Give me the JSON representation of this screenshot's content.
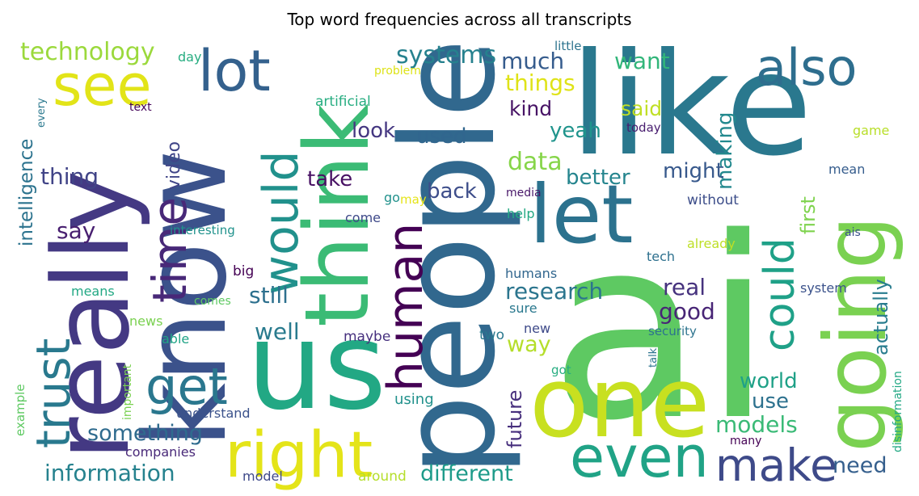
{
  "chart_data": {
    "type": "wordcloud",
    "title": "Top word frequencies across all transcripts",
    "words": [
      {
        "text": "ai",
        "weight": 100,
        "color": "#5ec962",
        "rotate": 0
      },
      {
        "text": "like",
        "weight": 78,
        "color": "#2a788e",
        "rotate": 0
      },
      {
        "text": "people",
        "weight": 74,
        "color": "#31688e",
        "rotate": 90
      },
      {
        "text": "us",
        "weight": 70,
        "color": "#22a884",
        "rotate": 0
      },
      {
        "text": "know",
        "weight": 66,
        "color": "#3b528b",
        "rotate": 90
      },
      {
        "text": "really",
        "weight": 62,
        "color": "#443983",
        "rotate": 90
      },
      {
        "text": "one",
        "weight": 58,
        "color": "#c8e020",
        "rotate": 0
      },
      {
        "text": "think",
        "weight": 54,
        "color": "#3bbb75",
        "rotate": 90
      },
      {
        "text": "going",
        "weight": 52,
        "color": "#7ad151",
        "rotate": 90
      },
      {
        "text": "let",
        "weight": 46,
        "color": "#2c728e",
        "rotate": 0
      },
      {
        "text": "right",
        "weight": 42,
        "color": "#e4e419",
        "rotate": 0
      },
      {
        "text": "see",
        "weight": 40,
        "color": "#e2e418",
        "rotate": 0
      },
      {
        "text": "even",
        "weight": 38,
        "color": "#20a386",
        "rotate": 0
      },
      {
        "text": "lot",
        "weight": 36,
        "color": "#34618d",
        "rotate": 0
      },
      {
        "text": "also",
        "weight": 34,
        "color": "#2e6e8e",
        "rotate": 0
      },
      {
        "text": "human",
        "weight": 33,
        "color": "#440154",
        "rotate": 90
      },
      {
        "text": "would",
        "weight": 32,
        "color": "#21918c",
        "rotate": 90
      },
      {
        "text": "time",
        "weight": 31,
        "color": "#482878",
        "rotate": 90
      },
      {
        "text": "get",
        "weight": 30,
        "color": "#2a778e",
        "rotate": 0
      },
      {
        "text": "trust",
        "weight": 29,
        "color": "#29798e",
        "rotate": 90
      },
      {
        "text": "make",
        "weight": 28,
        "color": "#3e4a89",
        "rotate": 0
      },
      {
        "text": "could",
        "weight": 27,
        "color": "#1fa188",
        "rotate": 90
      },
      {
        "text": "systems",
        "weight": 22,
        "color": "#26818e",
        "rotate": 0
      },
      {
        "text": "technology",
        "weight": 21,
        "color": "#9bd93c",
        "rotate": 0
      },
      {
        "text": "much",
        "weight": 20,
        "color": "#365c8d",
        "rotate": 0
      },
      {
        "text": "things",
        "weight": 20,
        "color": "#dfe318",
        "rotate": 0
      },
      {
        "text": "want",
        "weight": 19,
        "color": "#32b67a",
        "rotate": 0
      },
      {
        "text": "making",
        "weight": 18,
        "color": "#23898e",
        "rotate": 90
      },
      {
        "text": "said",
        "weight": 18,
        "color": "#c0df25",
        "rotate": 0
      },
      {
        "text": "kind",
        "weight": 18,
        "color": "#471365",
        "rotate": 0
      },
      {
        "text": "look",
        "weight": 18,
        "color": "#453781",
        "rotate": 0
      },
      {
        "text": "used",
        "weight": 17,
        "color": "#31668e",
        "rotate": 0
      },
      {
        "text": "yeah",
        "weight": 18,
        "color": "#1f948c",
        "rotate": 0
      },
      {
        "text": "data",
        "weight": 20,
        "color": "#86d549",
        "rotate": 0
      },
      {
        "text": "better",
        "weight": 18,
        "color": "#25858e",
        "rotate": 0
      },
      {
        "text": "might",
        "weight": 17,
        "color": "#38598c",
        "rotate": 0
      },
      {
        "text": "thing",
        "weight": 18,
        "color": "#414487",
        "rotate": 0
      },
      {
        "text": "intelligence",
        "weight": 17,
        "color": "#2c738e",
        "rotate": 90
      },
      {
        "text": "video",
        "weight": 15,
        "color": "#404588",
        "rotate": 90
      },
      {
        "text": "take",
        "weight": 18,
        "color": "#471063",
        "rotate": 0
      },
      {
        "text": "back",
        "weight": 18,
        "color": "#3d4d8a",
        "rotate": 0
      },
      {
        "text": "first",
        "weight": 17,
        "color": "#7fd34e",
        "rotate": 90
      },
      {
        "text": "say",
        "weight": 17,
        "color": "#481f70",
        "rotate": 0
      },
      {
        "text": "research",
        "weight": 19,
        "color": "#2b758e",
        "rotate": 0
      },
      {
        "text": "still",
        "weight": 19,
        "color": "#2d708e",
        "rotate": 0
      },
      {
        "text": "real",
        "weight": 18,
        "color": "#46327e",
        "rotate": 0
      },
      {
        "text": "actually",
        "weight": 17,
        "color": "#287c8e",
        "rotate": 90
      },
      {
        "text": "good",
        "weight": 19,
        "color": "#482576",
        "rotate": 0
      },
      {
        "text": "well",
        "weight": 18,
        "color": "#297b8e",
        "rotate": 0
      },
      {
        "text": "way",
        "weight": 18,
        "color": "#b5de2b",
        "rotate": 0
      },
      {
        "text": "future",
        "weight": 17,
        "color": "#472f7d",
        "rotate": 90
      },
      {
        "text": "world",
        "weight": 18,
        "color": "#1fa187",
        "rotate": 0
      },
      {
        "text": "use",
        "weight": 18,
        "color": "#2d718e",
        "rotate": 0
      },
      {
        "text": "something",
        "weight": 19,
        "color": "#2f6b8e",
        "rotate": 0
      },
      {
        "text": "models",
        "weight": 18,
        "color": "#3aba76",
        "rotate": 0
      },
      {
        "text": "information",
        "weight": 18,
        "color": "#26828e",
        "rotate": 0
      },
      {
        "text": "different",
        "weight": 18,
        "color": "#1e9b8a",
        "rotate": 0
      },
      {
        "text": "need",
        "weight": 17,
        "color": "#355f8d",
        "rotate": 0
      },
      {
        "text": "artificial",
        "weight": 12,
        "color": "#27ad81",
        "rotate": 0
      },
      {
        "text": "day",
        "weight": 11,
        "color": "#27ad81",
        "rotate": 0
      },
      {
        "text": "little",
        "weight": 11,
        "color": "#2c738e",
        "rotate": 0
      },
      {
        "text": "problem",
        "weight": 10,
        "color": "#dde318",
        "rotate": 0
      },
      {
        "text": "text",
        "weight": 10,
        "color": "#450559",
        "rotate": 0
      },
      {
        "text": "today",
        "weight": 11,
        "color": "#481d6f",
        "rotate": 0
      },
      {
        "text": "game",
        "weight": 11,
        "color": "#b8de29",
        "rotate": 0
      },
      {
        "text": "every",
        "weight": 9,
        "color": "#2a788e",
        "rotate": 90
      },
      {
        "text": "go",
        "weight": 11,
        "color": "#21918c",
        "rotate": 0
      },
      {
        "text": "may",
        "weight": 10,
        "color": "#e5e419",
        "rotate": 0
      },
      {
        "text": "media",
        "weight": 10,
        "color": "#481769",
        "rotate": 0
      },
      {
        "text": "mean",
        "weight": 11,
        "color": "#365d8d",
        "rotate": 0
      },
      {
        "text": "without",
        "weight": 12,
        "color": "#3d4e8a",
        "rotate": 0
      },
      {
        "text": "come",
        "weight": 11,
        "color": "#3e4989",
        "rotate": 0
      },
      {
        "text": "help",
        "weight": 11,
        "color": "#23a983",
        "rotate": 0
      },
      {
        "text": "interesting",
        "weight": 10,
        "color": "#20928c",
        "rotate": 0
      },
      {
        "text": "ais",
        "weight": 10,
        "color": "#3b528b",
        "rotate": 0
      },
      {
        "text": "already",
        "weight": 11,
        "color": "#bddf26",
        "rotate": 0
      },
      {
        "text": "big",
        "weight": 12,
        "color": "#440154",
        "rotate": 0
      },
      {
        "text": "tech",
        "weight": 11,
        "color": "#2d708e",
        "rotate": 0
      },
      {
        "text": "humans",
        "weight": 11,
        "color": "#31668e",
        "rotate": 0
      },
      {
        "text": "means",
        "weight": 11,
        "color": "#22a884",
        "rotate": 0
      },
      {
        "text": "comes",
        "weight": 10,
        "color": "#5ec962",
        "rotate": 0
      },
      {
        "text": "system",
        "weight": 11,
        "color": "#3b528b",
        "rotate": 0
      },
      {
        "text": "sure",
        "weight": 11,
        "color": "#2a788e",
        "rotate": 0
      },
      {
        "text": "news",
        "weight": 11,
        "color": "#7ad151",
        "rotate": 0
      },
      {
        "text": "able",
        "weight": 11,
        "color": "#20a386",
        "rotate": 0
      },
      {
        "text": "maybe",
        "weight": 12,
        "color": "#46307e",
        "rotate": 0
      },
      {
        "text": "two",
        "weight": 11,
        "color": "#2a788e",
        "rotate": 0
      },
      {
        "text": "new",
        "weight": 11,
        "color": "#3e4a89",
        "rotate": 0
      },
      {
        "text": "security",
        "weight": 10,
        "color": "#2c738e",
        "rotate": 0
      },
      {
        "text": "talk",
        "weight": 9,
        "color": "#2c738e",
        "rotate": 90
      },
      {
        "text": "important",
        "weight": 10,
        "color": "#7ad151",
        "rotate": 90
      },
      {
        "text": "got",
        "weight": 11,
        "color": "#27ad81",
        "rotate": 0
      },
      {
        "text": "example",
        "weight": 10,
        "color": "#5ec962",
        "rotate": 90
      },
      {
        "text": "using",
        "weight": 12,
        "color": "#21918c",
        "rotate": 0
      },
      {
        "text": "understand",
        "weight": 10,
        "color": "#3b528b",
        "rotate": 0
      },
      {
        "text": "companies",
        "weight": 11,
        "color": "#482878",
        "rotate": 0
      },
      {
        "text": "many",
        "weight": 9,
        "color": "#440154",
        "rotate": 0
      },
      {
        "text": "disinformation",
        "weight": 10,
        "color": "#22a884",
        "rotate": 90
      },
      {
        "text": "model",
        "weight": 11,
        "color": "#3e4989",
        "rotate": 0
      },
      {
        "text": "around",
        "weight": 11,
        "color": "#b5de2b",
        "rotate": 0
      }
    ]
  }
}
